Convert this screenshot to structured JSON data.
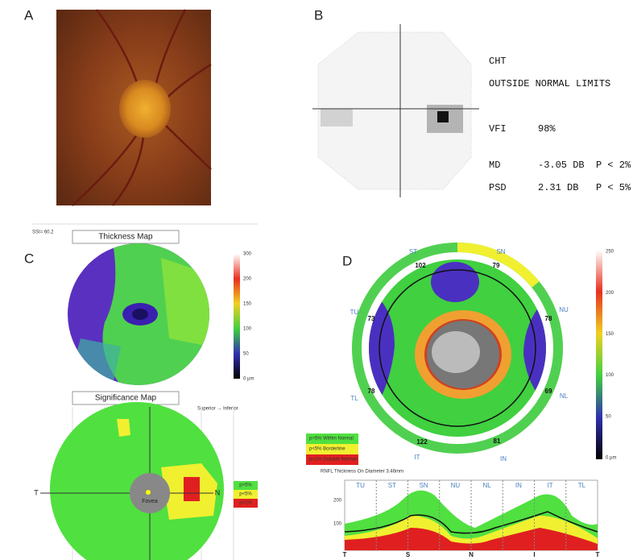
{
  "panels": {
    "A": {
      "label": "A"
    },
    "B": {
      "label": "B",
      "test": "CHT",
      "result": "OUTSIDE NORMAL LIMITS",
      "rows": [
        [
          "VFI",
          "98%"
        ],
        [
          "MD",
          "-3.05 DB",
          "P < 2%"
        ],
        [
          "PSD",
          "2.31 DB",
          "P < 5%"
        ]
      ]
    },
    "C": {
      "label": "C",
      "ssi": "SSI= 60.2",
      "thickness_title": "Thickness Map",
      "scale": [
        "300",
        "200",
        "150",
        "100",
        "50",
        "0 µm"
      ],
      "significance_title": "Significance Map",
      "orientation": "Superior → Inferior",
      "axis_left": "T",
      "axis_right": "N",
      "fovea": "Fovea",
      "legend": [
        "p>5%",
        "p<5%",
        "p<1%"
      ]
    },
    "D": {
      "label": "D",
      "sectors": [
        {
          "name": "ST",
          "value": "102"
        },
        {
          "name": "SN",
          "value": "79"
        },
        {
          "name": "NU",
          "value": "78"
        },
        {
          "name": "NL",
          "value": "69"
        },
        {
          "name": "IN",
          "value": "81"
        },
        {
          "name": "IT",
          "value": "122"
        },
        {
          "name": "TL",
          "value": "78"
        },
        {
          "name": "TU",
          "value": "73"
        }
      ],
      "scale": [
        "250",
        "200",
        "150",
        "100",
        "50",
        "0 µm"
      ],
      "legend": [
        "p>5% Within Normal",
        "p<5% Borderline",
        "p<1% Outside Normal"
      ],
      "profile_title": "RNFL Thickness On Diameter 3.46mm",
      "profile_sectors": [
        "TU",
        "ST",
        "SN",
        "NU",
        "NL",
        "IN",
        "IT",
        "TL"
      ],
      "profile_yticks": [
        "200",
        "100"
      ],
      "profile_x": [
        "T",
        "S",
        "N",
        "I",
        "T"
      ]
    }
  }
}
